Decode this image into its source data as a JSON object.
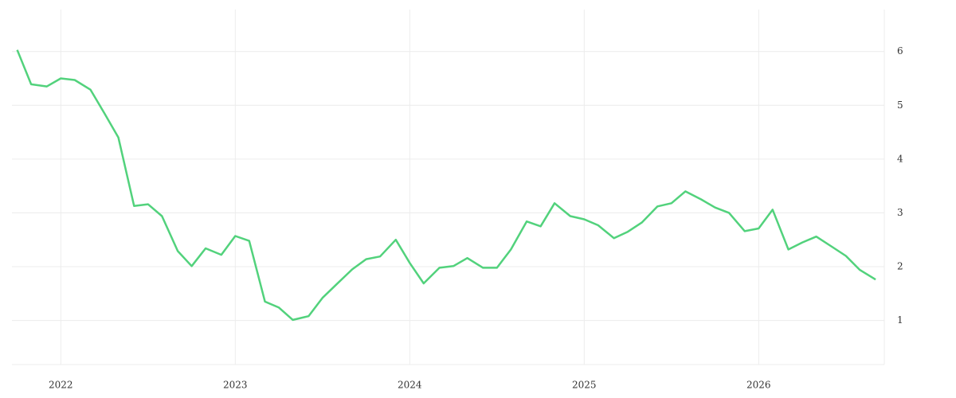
{
  "chart_data": {
    "type": "line",
    "color": "#52d27c",
    "grid": true,
    "y_axis_side": "right",
    "x": [
      2021.75,
      2021.83,
      2021.92,
      2022.0,
      2022.08,
      2022.17,
      2022.25,
      2022.33,
      2022.42,
      2022.5,
      2022.58,
      2022.67,
      2022.75,
      2022.83,
      2022.92,
      2023.0,
      2023.08,
      2023.17,
      2023.25,
      2023.33,
      2023.42,
      2023.5,
      2023.58,
      2023.67,
      2023.75,
      2023.83,
      2023.92,
      2024.0,
      2024.08,
      2024.17,
      2024.25,
      2024.33,
      2024.42,
      2024.5,
      2024.58,
      2024.67,
      2024.75,
      2024.83,
      2024.92,
      2025.0,
      2025.08,
      2025.17,
      2025.25,
      2025.33,
      2025.42,
      2025.5,
      2025.58,
      2025.67,
      2025.75,
      2025.83,
      2025.92,
      2026.0,
      2026.08,
      2026.17,
      2026.25,
      2026.33,
      2026.42,
      2026.5,
      2026.58,
      2026.67
    ],
    "values": [
      6.03,
      5.39,
      5.35,
      5.5,
      5.47,
      5.29,
      4.85,
      4.4,
      3.13,
      3.16,
      2.94,
      2.29,
      2.01,
      2.34,
      2.22,
      2.57,
      2.48,
      1.35,
      1.24,
      1.01,
      1.08,
      1.42,
      1.67,
      1.95,
      2.14,
      2.19,
      2.5,
      2.07,
      1.69,
      1.98,
      2.01,
      2.16,
      1.98,
      1.98,
      2.32,
      2.84,
      2.75,
      3.18,
      2.94,
      2.88,
      2.77,
      2.53,
      2.65,
      2.82,
      3.12,
      3.18,
      3.4,
      3.25,
      3.1,
      3.0,
      2.66,
      2.71,
      3.06,
      2.32,
      2.45,
      2.56,
      2.37,
      2.2,
      1.94,
      1.76
    ],
    "xlim": [
      2021.72,
      2026.72
    ],
    "xticks": [
      2022,
      2023,
      2024,
      2025,
      2026
    ],
    "ylim": [
      0.18,
      6.78
    ],
    "yticks": [
      1,
      2,
      3,
      4,
      5,
      6
    ]
  }
}
